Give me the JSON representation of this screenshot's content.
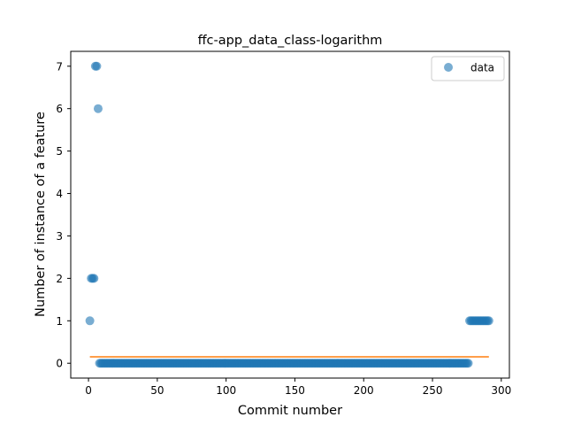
{
  "chart_data": {
    "type": "scatter",
    "title": "ffc-app_data_class-logarithm",
    "xlabel": "Commit number",
    "ylabel": "Number of instance of a feature",
    "xlim": [
      -12.9,
      305.9
    ],
    "ylim": [
      -0.35,
      7.35
    ],
    "xticks": [
      0,
      50,
      100,
      150,
      200,
      250,
      300
    ],
    "yticks": [
      0,
      1,
      2,
      3,
      4,
      5,
      6,
      7
    ],
    "legend": {
      "position": "upper right",
      "entries": [
        "data"
      ]
    },
    "colors": {
      "data": "#1f77b4",
      "fit": "#ff7f0e"
    },
    "series": [
      {
        "name": "data",
        "kind": "scatter",
        "segments": [
          {
            "x_start": 1,
            "x_end": 1,
            "y": 1
          },
          {
            "x_start": 2,
            "x_end": 4,
            "y": 2
          },
          {
            "x_start": 5,
            "x_end": 6,
            "y": 7
          },
          {
            "x_start": 7,
            "x_end": 7,
            "y": 6
          },
          {
            "x_start": 8,
            "x_end": 276,
            "y": 0
          },
          {
            "x_start": 277,
            "x_end": 291,
            "y": 1
          }
        ]
      },
      {
        "kind": "line",
        "x": [
          1,
          291
        ],
        "y": [
          0.15,
          0.15
        ]
      }
    ]
  }
}
